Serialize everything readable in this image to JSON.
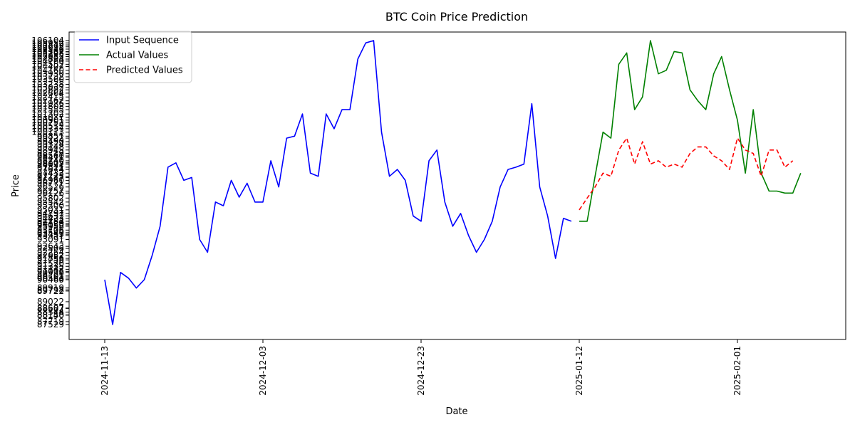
{
  "chart_data": {
    "type": "line",
    "title": "BTC Coin Price Prediction",
    "xlabel": "Date",
    "ylabel": "Price",
    "x_ticks": [
      "2024-11-13",
      "2024-12-03",
      "2024-12-23",
      "2025-01-12",
      "2025-02-01"
    ],
    "x_start": "2024-11-13",
    "y_tick_labels": [
      87529,
      87719,
      88140,
      88158,
      88344,
      88582,
      88607,
      89022,
      89722,
      89798,
      89919,
      90460,
      90469,
      90563,
      90701,
      90938,
      91006,
      91142,
      91335,
      91520,
      91758,
      91856,
      92052,
      92254,
      92506,
      92643,
      93091,
      93351,
      93433,
      93540,
      93706,
      93958,
      94050,
      94129,
      94284,
      94473,
      94632,
      94797,
      95031,
      95300,
      95542,
      95802,
      96126,
      96257,
      96526,
      96771,
      96960,
      97147,
      97225,
      97433,
      97674,
      97821,
      98022,
      98105,
      98240,
      98471,
      98560,
      98719,
      98945,
      99148,
      99324,
      99490,
      99722,
      99851,
      100113,
      100337,
      100512,
      100752,
      100901,
      101077,
      101302,
      101585,
      101803,
      101976,
      102162,
      102415,
      102664,
      102882,
      103032,
      103238,
      103560,
      103732,
      103930,
      104160,
      104407,
      104552,
      104760,
      104894,
      105055,
      105195,
      105298,
      105387,
      105546,
      105695,
      105819,
      105952,
      106104
    ],
    "legend_location": "upper left",
    "series": [
      {
        "name": "Input Sequence",
        "color": "#0000ff",
        "style": "solid",
        "x_start_index": 0,
        "values": [
          90460,
          87529,
          90938,
          90563,
          89919,
          90460,
          92052,
          93958,
          97825,
          98105,
          96960,
          97147,
          93091,
          92254,
          95542,
          95300,
          96960,
          95860,
          96771,
          95542,
          95542,
          98240,
          96526,
          99722,
          99851,
          101302,
          97430,
          97225,
          101302,
          100337,
          101585,
          101585,
          104894,
          105952,
          106104,
          100113,
          97225,
          97674,
          96960,
          94632,
          94284,
          98240,
          98945,
          95542,
          93958,
          94797,
          93351,
          92254,
          93091,
          94284,
          96526,
          97674,
          97821,
          98022,
          101976,
          96526,
          94632,
          91856,
          94473,
          94284
        ]
      },
      {
        "name": "Actual Values",
        "color": "#008000",
        "style": "solid",
        "x_start_index": 60,
        "values": [
          94284,
          94284,
          97225,
          100113,
          99722,
          104552,
          105298,
          101585,
          102415,
          106104,
          103930,
          104160,
          105387,
          105298,
          102882,
          102162,
          101585,
          103930,
          105055,
          102882,
          100901,
          97430,
          101585,
          97430,
          96257,
          96257,
          96126,
          96126,
          97430
        ]
      },
      {
        "name": "Predicted Values",
        "color": "#ff0000",
        "style": "dashed",
        "x_start_index": 60,
        "values": [
          95031,
          95802,
          96526,
          97430,
          97225,
          98945,
          99722,
          98022,
          99490,
          98022,
          98240,
          97821,
          98022,
          97821,
          98719,
          99148,
          99148,
          98560,
          98240,
          97674,
          99722,
          98945,
          98719,
          97225,
          98945,
          98945,
          97821,
          98240
        ]
      }
    ]
  }
}
